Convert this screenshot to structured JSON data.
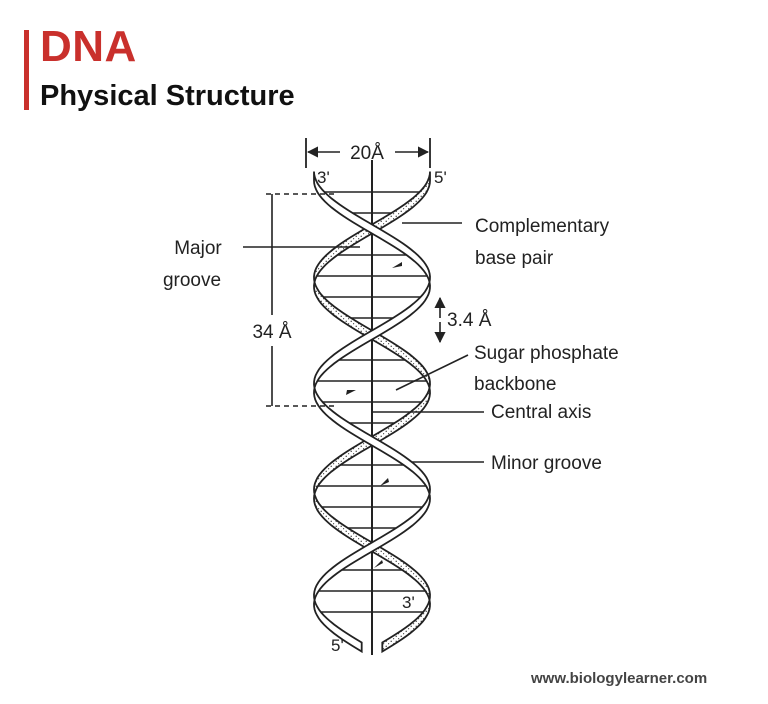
{
  "header": {
    "title": "DNA",
    "subtitle": "Physical Structure"
  },
  "measurements": {
    "width": "20Å",
    "pitch": "34 Å",
    "rise": "3.4 Å"
  },
  "ends": {
    "top_left": "3'",
    "top_right": "5'",
    "bottom_right": "3'",
    "bottom_left": "5'"
  },
  "labels": {
    "major_groove_line1": "Major",
    "major_groove_line2": "groove",
    "complementary_line1": "Complementary",
    "complementary_line2": "base pair",
    "sugar_line1": "Sugar phosphate",
    "sugar_line2": "backbone",
    "central_axis": "Central axis",
    "minor_groove": "Minor groove"
  },
  "footer": {
    "website": "www.biologylearner.com"
  },
  "colors": {
    "accent": "#c9302c",
    "ink": "#1a1a1a"
  }
}
